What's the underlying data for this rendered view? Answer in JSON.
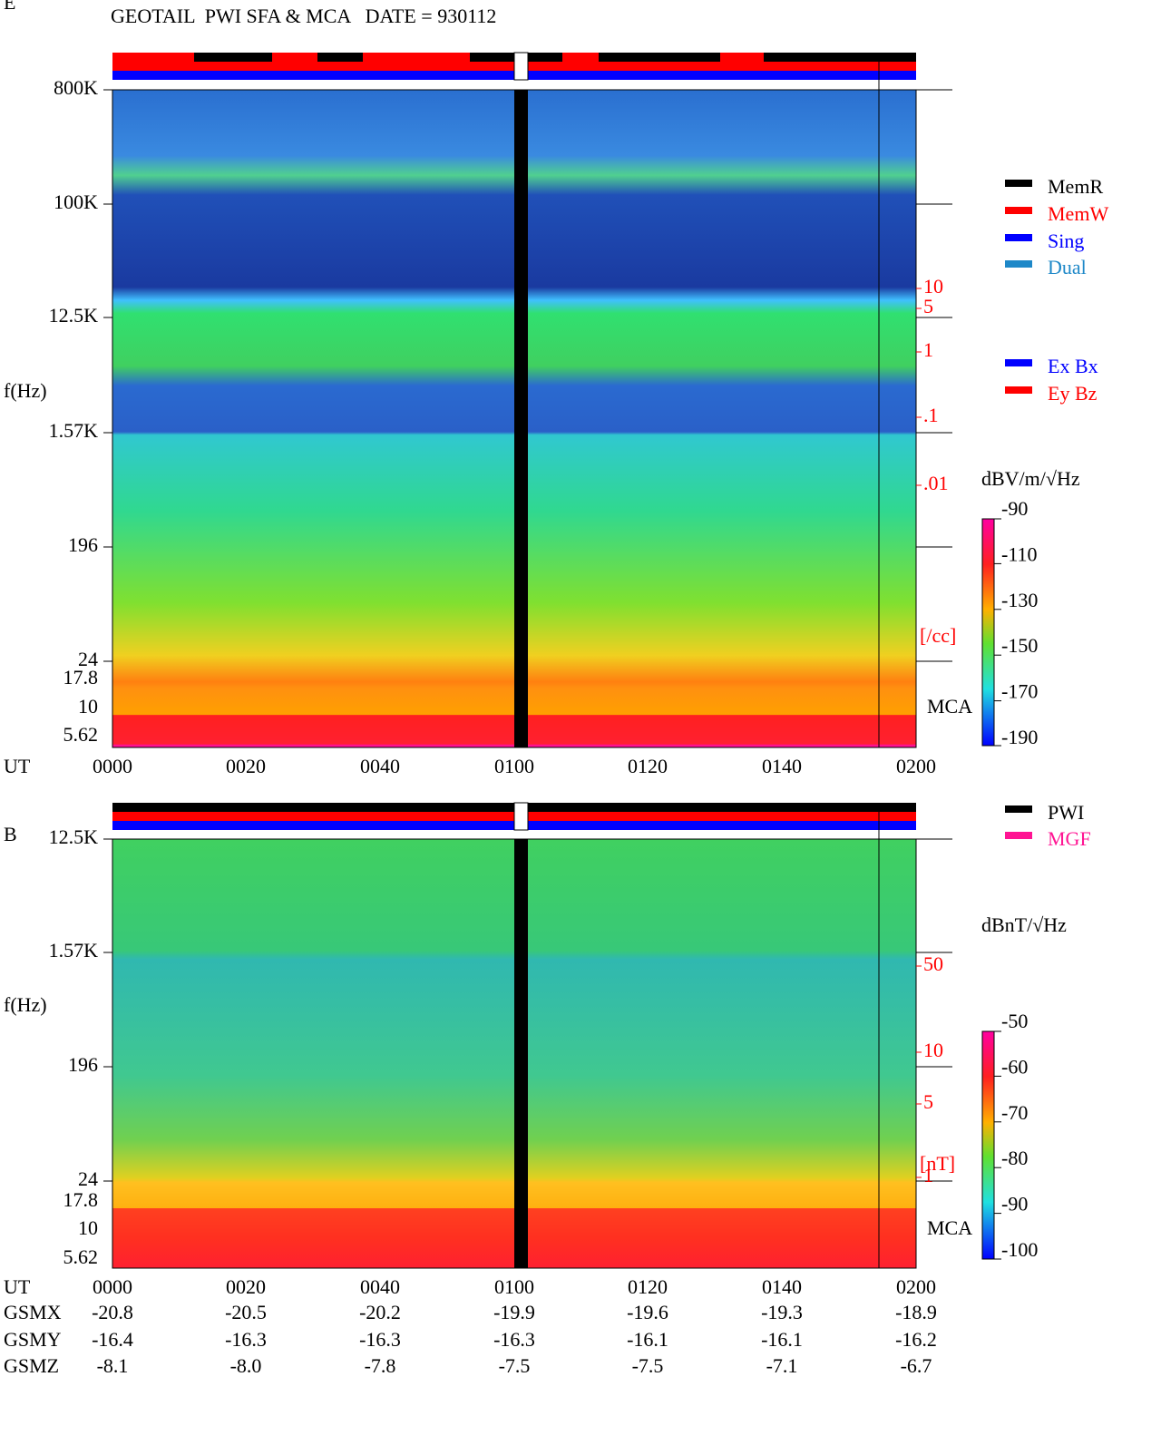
{
  "header": {
    "title": "GEOTAIL  PWI SFA & MCA   DATE = 930112"
  },
  "panels": [
    {
      "label": "E",
      "ylabel": "f(Hz)",
      "yticks": [
        "800K",
        "100K",
        "12.5K",
        "1.57K",
        "196",
        "24",
        "17.8",
        "10",
        "5.62"
      ],
      "right_ticks": [
        "10",
        "5",
        "1",
        ".1",
        ".01"
      ],
      "right_unit": "[/cc]",
      "mca": "MCA",
      "xlabel": "UT",
      "xticks": [
        "0000",
        "0020",
        "0040",
        "0100",
        "0120",
        "0140",
        "0200"
      ],
      "colorbar": {
        "unit": "dBV/m/√Hz",
        "ticks": [
          "-90",
          "-110",
          "-130",
          "-150",
          "-170",
          "-190"
        ]
      }
    },
    {
      "label": "B",
      "ylabel": "f(Hz)",
      "yticks": [
        "12.5K",
        "1.57K",
        "196",
        "24",
        "17.8",
        "10",
        "5.62"
      ],
      "right_ticks": [
        "50",
        "10",
        "5",
        "1"
      ],
      "right_unit": "[nT]",
      "mca": "MCA",
      "xlabel": "UT",
      "xticks": [
        "0000",
        "0020",
        "0040",
        "0100",
        "0120",
        "0140",
        "0200"
      ],
      "colorbar": {
        "unit": "dBnT/√Hz",
        "ticks": [
          "-50",
          "-60",
          "-70",
          "-80",
          "-90",
          "-100"
        ]
      }
    }
  ],
  "legend_e": [
    {
      "name": "MemR",
      "color": "#000000"
    },
    {
      "name": "MemW",
      "color": "#ff0000"
    },
    {
      "name": "Sing",
      "color": "#0000ff"
    },
    {
      "name": "Dual",
      "color": "#1e88c8"
    }
  ],
  "legend_ant": [
    {
      "name": "Ex Bx",
      "color": "#0000ff"
    },
    {
      "name": "Ey Bz",
      "color": "#ff0000"
    }
  ],
  "legend_b": [
    {
      "name": "PWI",
      "color": "#000000"
    },
    {
      "name": "MGF",
      "color": "#ff1493"
    }
  ],
  "orbit": [
    {
      "label": "GSMX",
      "values": [
        "-20.8",
        "-20.5",
        "-20.2",
        "-19.9",
        "-19.6",
        "-19.3",
        "-18.9"
      ]
    },
    {
      "label": "GSMY",
      "values": [
        "-16.4",
        "-16.3",
        "-16.3",
        "-16.3",
        "-16.1",
        "-16.1",
        "-16.2"
      ]
    },
    {
      "label": "GSMZ",
      "values": [
        "-8.1",
        "-8.0",
        "-7.8",
        "-7.5",
        "-7.5",
        "-7.1",
        "-6.7"
      ]
    }
  ]
}
